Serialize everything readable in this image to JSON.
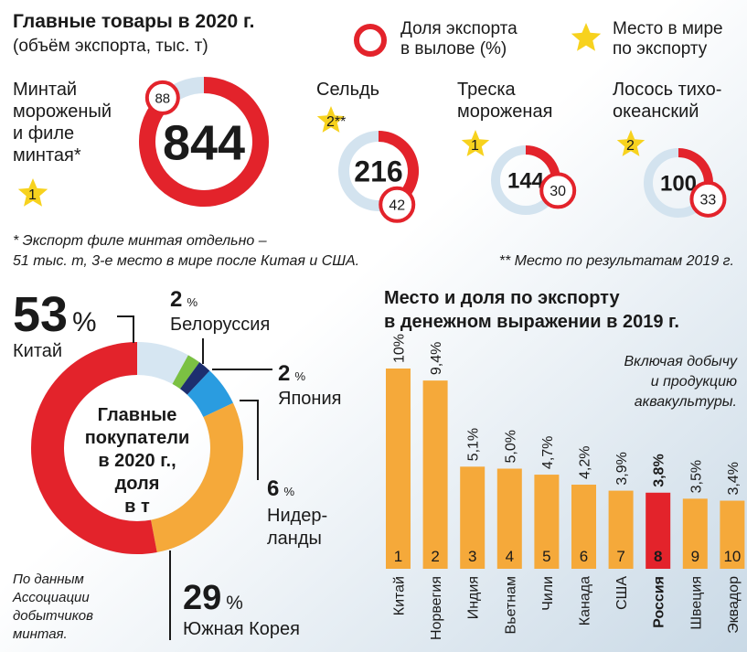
{
  "chart_data": [
    {
      "type": "gauge",
      "title": [
        "Главные товары в 2020 г.",
        "(объём экспорта, тыс. т)"
      ],
      "legend": {
        "share": [
          "Доля экспорта",
          "в вылове (%)"
        ],
        "rank": [
          "Место в мире",
          "по экспорту"
        ]
      },
      "share_color": "#e3232b",
      "track_color": "#d3e3ef",
      "star_color": "#f7d21e",
      "items": [
        {
          "name": [
            "Минтай",
            "мороженый",
            "и филе",
            "минтая*"
          ],
          "volume": 844,
          "share": 88,
          "rank": 1
        },
        {
          "name": [
            "Сельдь"
          ],
          "volume": 216,
          "share": 42,
          "rank": 2,
          "rank_label": "2**"
        },
        {
          "name": [
            "Треска",
            "мороженая"
          ],
          "volume": 144,
          "share": 30,
          "rank": 1
        },
        {
          "name": [
            "Лосось тихо-",
            "океанский"
          ],
          "volume": 100,
          "share": 33,
          "rank": 2
        }
      ],
      "footnotes": [
        [
          "* Экспорт филе минтая отдельно –",
          "51 тыс. т, 3-е место в мире после Китая и США."
        ],
        [
          "** Место по результатам 2019 г."
        ]
      ]
    },
    {
      "type": "donut",
      "title": [
        "Главные",
        "покупатели",
        "в 2020 г.,",
        "доля",
        "в т"
      ],
      "unit": "%",
      "categories": [
        [
          "Белоруссия"
        ],
        [
          "Япония"
        ],
        [
          "Нидер-",
          "ланды"
        ],
        [
          "Южная Корея"
        ],
        [
          "Китай"
        ]
      ],
      "values": [
        2,
        2,
        6,
        29,
        53
      ],
      "colors": [
        "#7bc143",
        "#1d2f6f",
        "#2a9ce0",
        "#f5a93a",
        "#e3232b"
      ],
      "track_color": "#d6e6f2",
      "source": [
        "По данным",
        "Ассоциации",
        "добытчиков",
        "минтая."
      ]
    },
    {
      "type": "bar",
      "title": [
        "Место и доля по экспорту",
        "в денежном выражении в 2019 г."
      ],
      "note": [
        "Включая добычу",
        "и продукцию",
        "аквакультуры."
      ],
      "categories": [
        "Китай",
        "Норвегия",
        "Индия",
        "Вьетнам",
        "Чили",
        "Канада",
        "США",
        "Россия",
        "Швеция",
        "Эквадор"
      ],
      "values": [
        10,
        9.4,
        5.1,
        5.0,
        4.7,
        4.2,
        3.9,
        3.8,
        3.5,
        3.4
      ],
      "value_labels": [
        "10%",
        "9,4%",
        "5,1%",
        "5,0%",
        "4,7%",
        "4,2%",
        "3,9%",
        "3,8%",
        "3,5%",
        "3,4%"
      ],
      "ranks": [
        1,
        2,
        3,
        4,
        5,
        6,
        7,
        8,
        9,
        10
      ],
      "colors": [
        "#f5a93a",
        "#f5a93a",
        "#f5a93a",
        "#f5a93a",
        "#f5a93a",
        "#f5a93a",
        "#f5a93a",
        "#e3232b",
        "#f5a93a",
        "#f5a93a"
      ]
    }
  ]
}
